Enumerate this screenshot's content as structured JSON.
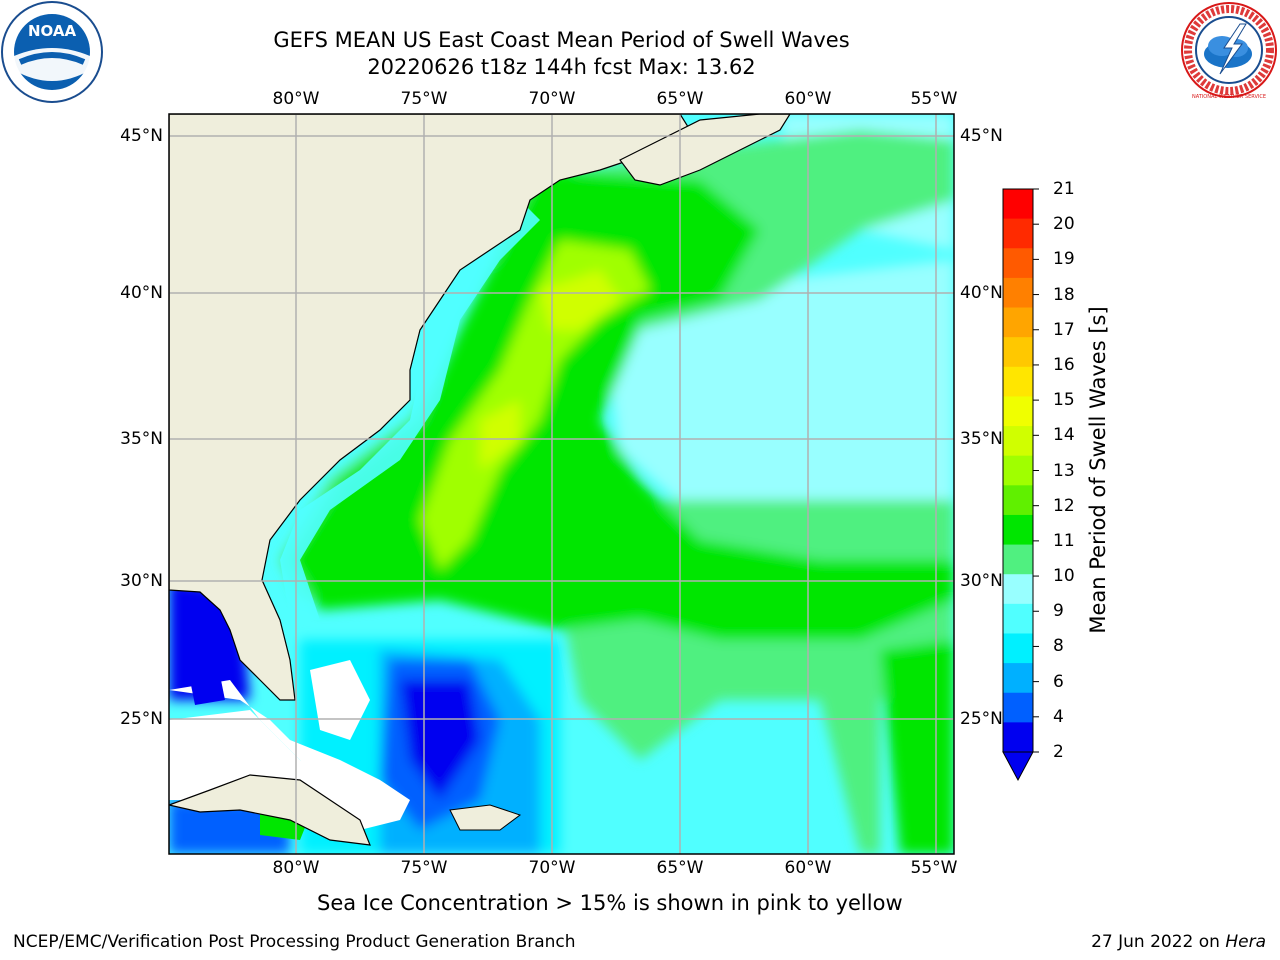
{
  "title_line1": "GEFS MEAN US East Coast Mean Period of Swell Waves",
  "title_line2": "20220626 t18z 144h fcst   Max: 13.62",
  "lon_labels": [
    "80°W",
    "75°W",
    "70°W",
    "65°W",
    "60°W",
    "55°W"
  ],
  "lat_labels": [
    "45°N",
    "40°N",
    "35°N",
    "30°N",
    "25°N"
  ],
  "colorbar": {
    "label": "Mean Period of Swell Waves [s]",
    "ticks": [
      "21",
      "20",
      "19",
      "18",
      "17",
      "16",
      "15",
      "14",
      "13",
      "12",
      "11",
      "10",
      "9",
      "8",
      "6",
      "4",
      "2"
    ],
    "colors": [
      "#ff0000",
      "#ff2a00",
      "#ff5a00",
      "#ff8000",
      "#ffa500",
      "#ffc800",
      "#ffe600",
      "#f0ff00",
      "#d0ff00",
      "#a0ff00",
      "#60f000",
      "#00e600",
      "#50f080",
      "#98ffff",
      "#50ffff",
      "#00f0ff",
      "#00b0ff",
      "#0060ff",
      "#0000f0"
    ]
  },
  "note": "Sea Ice Concentration > 15% is shown in pink to yellow",
  "footer_left": "NCEP/EMC/Verification Post Processing Product Generation Branch",
  "footer_right_date": "27 Jun 2022 on ",
  "footer_right_host": "Hera",
  "logos": {
    "noaa_text": "NOAA",
    "nws_text": "NATIONAL WEATHER SERVICE"
  },
  "colors": {
    "land": "#efeedc",
    "grid": "#b0b0b0",
    "low_period": "#0000f0"
  }
}
